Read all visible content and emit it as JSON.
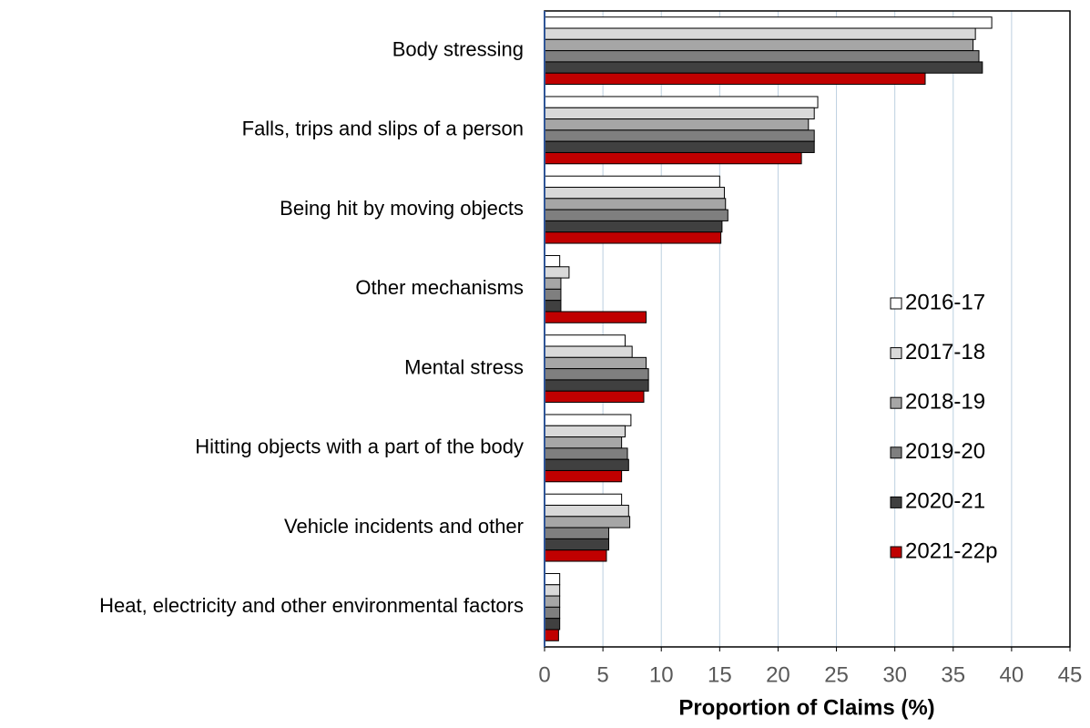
{
  "chart_data": {
    "type": "hbar",
    "x_label": "Proportion of Claims (%)",
    "categories": [
      "Body stressing",
      "Falls, trips and slips of a person",
      "Being hit by moving objects",
      "Other mechanisms",
      "Mental stress",
      "Hitting objects with a part of the body",
      "Vehicle incidents and other",
      "Heat, electricity and other environmental factors"
    ],
    "series": [
      {
        "name": "2016-17",
        "color": "#ffffff",
        "values": [
          38.3,
          23.4,
          15.0,
          1.3,
          6.9,
          7.4,
          6.6,
          1.3
        ]
      },
      {
        "name": "2017-18",
        "color": "#d9d9d9",
        "values": [
          36.9,
          23.1,
          15.4,
          2.1,
          7.5,
          6.9,
          7.2,
          1.3
        ]
      },
      {
        "name": "2018-19",
        "color": "#a6a6a6",
        "values": [
          36.7,
          22.6,
          15.5,
          1.4,
          8.7,
          6.6,
          7.3,
          1.3
        ]
      },
      {
        "name": "2019-20",
        "color": "#7f7f7f",
        "values": [
          37.2,
          23.1,
          15.7,
          1.4,
          8.9,
          7.1,
          5.5,
          1.3
        ]
      },
      {
        "name": "2020-21",
        "color": "#404040",
        "values": [
          37.5,
          23.1,
          15.2,
          1.4,
          8.9,
          7.2,
          5.5,
          1.3
        ]
      },
      {
        "name": "2021-22p",
        "color": "#c00000",
        "values": [
          32.6,
          22.0,
          15.1,
          8.7,
          8.5,
          6.6,
          5.3,
          1.2
        ]
      }
    ],
    "xlim": [
      0,
      45
    ],
    "xticks": [
      0,
      5,
      10,
      15,
      20,
      25,
      30,
      35,
      40,
      45
    ],
    "grid": true,
    "legend": "right"
  }
}
